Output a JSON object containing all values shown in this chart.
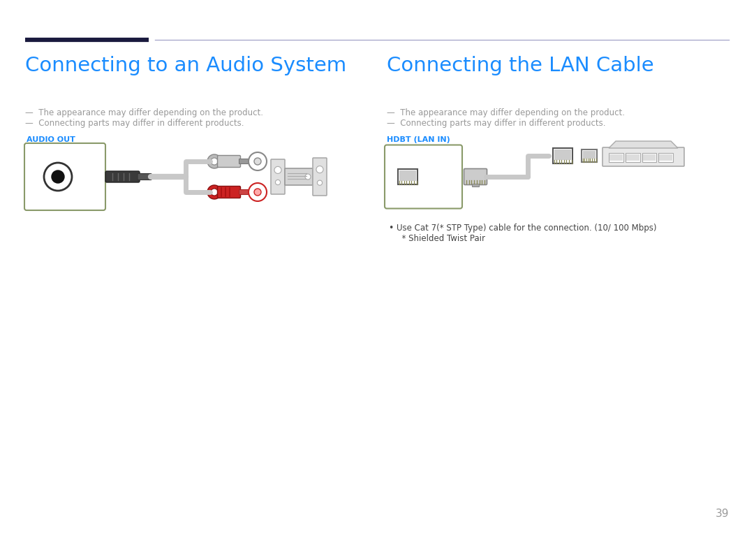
{
  "bg_color": "#ffffff",
  "title_color": "#1a8cff",
  "header_line_color_dark": "#1a1a3e",
  "header_line_color_light": "#aaaacc",
  "text_color_dark": "#444444",
  "text_color_gray": "#999999",
  "label_color_blue": "#1a8cff",
  "box_border_color": "#8a9a6a",
  "cable_color": "#c8c8c8",
  "page_number": "39",
  "left_title": "Connecting to an Audio System",
  "right_title": "Connecting the LAN Cable",
  "note1": "The appearance may differ depending on the product.",
  "note2": "Connecting parts may differ in different products.",
  "left_label": "AUDIO OUT",
  "right_label": "HDBT (LAN IN)",
  "bullet1": "Use Cat 7(* STP Type) cable for the connection. (10/ 100 Mbps)",
  "bullet2": "  * Shielded Twist Pair"
}
